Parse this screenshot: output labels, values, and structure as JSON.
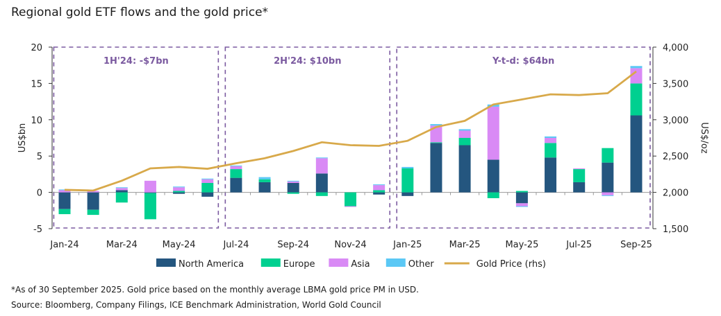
{
  "chart_data": {
    "type": "bar",
    "title": "Regional gold ETF flows and the gold price*",
    "ylabel": "US$bn",
    "ylabel_right": "US$/oz",
    "ylim": [
      -5,
      20
    ],
    "yticks": [
      "-5",
      "0",
      "5",
      "10",
      "15",
      "20"
    ],
    "ylim_right": [
      1500,
      4000
    ],
    "yticks_right": [
      "1,500",
      "2,000",
      "2,500",
      "3,000",
      "3,500",
      "4,000"
    ],
    "categories": [
      "Jan-24",
      "Feb-24",
      "Mar-24",
      "Apr-24",
      "May-24",
      "Jun-24",
      "Jul-24",
      "Aug-24",
      "Sep-24",
      "Oct-24",
      "Nov-24",
      "Dec-24",
      "Jan-25",
      "Feb-25",
      "Mar-25",
      "Apr-25",
      "May-25",
      "Jun-25",
      "Jul-25",
      "Aug-25",
      "Sep-25"
    ],
    "tick_labels": [
      "Jan-24",
      "Mar-24",
      "May-24",
      "Jul-24",
      "Sep-24",
      "Nov-24",
      "Jan-25",
      "Mar-25",
      "May-25",
      "Jul-25",
      "Sep-25"
    ],
    "stacked": true,
    "series": [
      {
        "name": "North America",
        "type": "bar",
        "color": "#24567f",
        "values": [
          -2.3,
          -2.4,
          0.3,
          -0.1,
          -0.2,
          -0.6,
          2.0,
          1.4,
          1.3,
          2.6,
          0.0,
          -0.3,
          -0.5,
          6.8,
          6.5,
          4.5,
          -1.5,
          4.8,
          1.4,
          4.1,
          10.6
        ]
      },
      {
        "name": "Europe",
        "type": "bar",
        "color": "#00d090",
        "values": [
          -0.7,
          -0.7,
          -1.4,
          -3.6,
          0.2,
          1.3,
          1.2,
          0.4,
          -0.2,
          -0.5,
          -1.9,
          0.3,
          3.3,
          0.1,
          1.0,
          -0.8,
          0.2,
          2.0,
          1.8,
          2.0,
          4.4
        ]
      },
      {
        "name": "Asia",
        "type": "bar",
        "color": "#d98af5",
        "values": [
          0.3,
          0.2,
          0.3,
          1.6,
          0.5,
          0.5,
          0.4,
          0.0,
          0.2,
          2.1,
          -0.1,
          0.7,
          0.0,
          2.3,
          1.0,
          7.3,
          -0.4,
          0.7,
          0.1,
          -0.4,
          2.1
        ]
      },
      {
        "name": "Other",
        "type": "bar",
        "color": "#5bc8f5",
        "values": [
          0.1,
          0.0,
          0.1,
          0.0,
          0.1,
          0.1,
          0.1,
          0.3,
          0.1,
          0.1,
          0.0,
          0.1,
          0.2,
          0.2,
          0.2,
          0.3,
          -0.1,
          0.2,
          0.0,
          -0.1,
          0.3
        ]
      },
      {
        "name": "Gold Price (rhs)",
        "type": "line",
        "axis": "right",
        "color": "#d8a94a",
        "values": [
          2035,
          2025,
          2160,
          2330,
          2350,
          2325,
          2400,
          2470,
          2570,
          2690,
          2650,
          2640,
          2710,
          2900,
          2985,
          3210,
          3280,
          3350,
          3340,
          3365,
          3665
        ]
      }
    ],
    "periods": [
      {
        "label": "1H'24: -$7bn",
        "from": "Jan-24",
        "to": "Jun-24"
      },
      {
        "label": "2H'24: $10bn",
        "from": "Jul-24",
        "to": "Dec-24"
      },
      {
        "label": "Y-t-d: $64bn",
        "from": "Jan-25",
        "to": "Sep-25"
      }
    ],
    "period_color": "#7b5aa0",
    "legend_position": "bottom",
    "grid": false
  },
  "footnotes": {
    "note": "*As of 30 September 2025. Gold price based on the monthly average LBMA gold price PM in USD.",
    "source": "Source: Bloomberg, Company Filings, ICE Benchmark Administration, World Gold Council"
  }
}
